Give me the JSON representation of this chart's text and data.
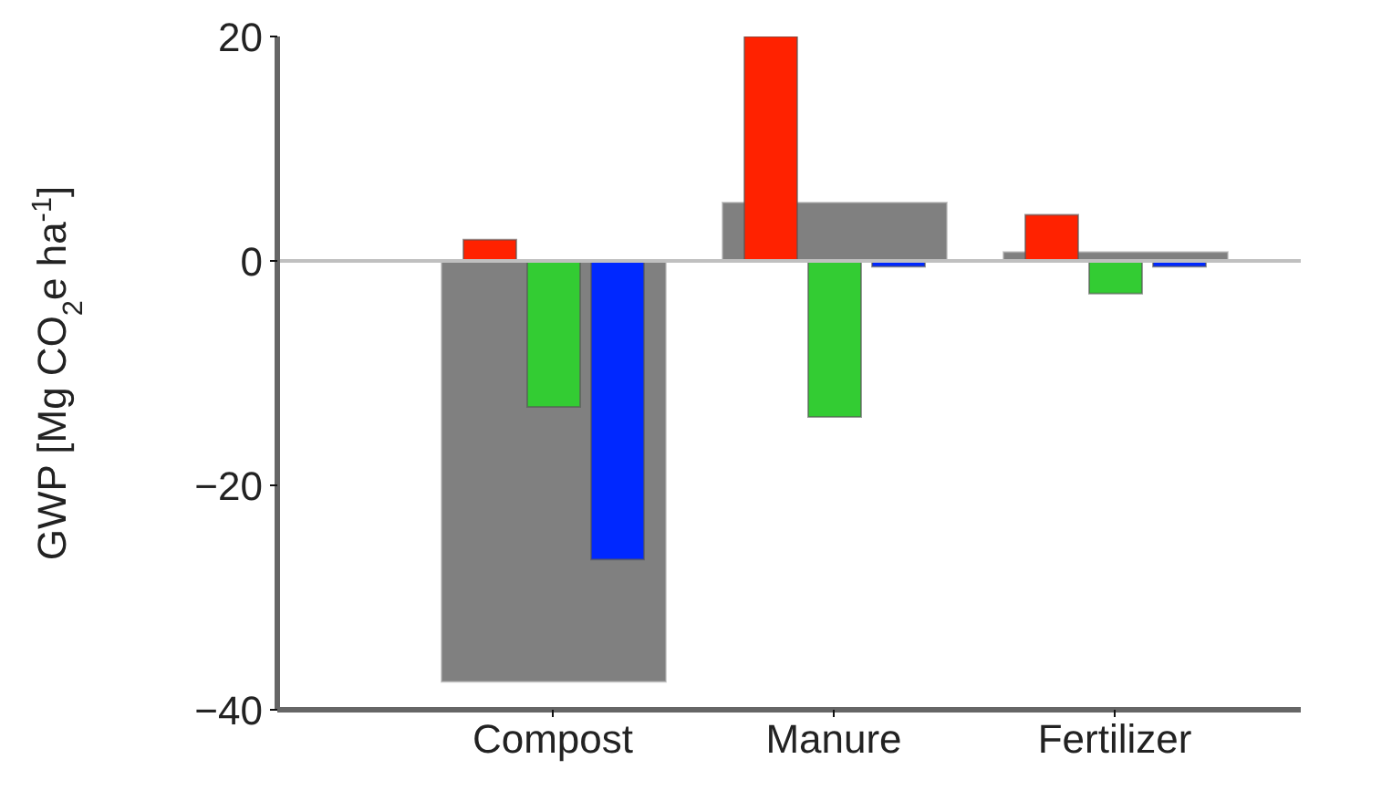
{
  "chart_data": {
    "type": "bar",
    "ylabel": "GWP [Mg CO$_{2}$e ha$^{-1}$]",
    "categories": [
      "Compost",
      "Manure",
      "Fertilizer"
    ],
    "series": [
      {
        "color": "#808080",
        "values": [
          -37.5,
          5.2,
          0.8
        ]
      },
      {
        "color": "#ff2200",
        "values": [
          1.9,
          20,
          4.1
        ]
      },
      {
        "color": "#33cc33",
        "values": [
          -13,
          -13.9,
          -2.9
        ]
      },
      {
        "color": "#0028ff",
        "values": [
          -26.6,
          -0.5,
          -0.5
        ]
      }
    ],
    "ylim": [
      -40,
      20
    ],
    "yticks": [
      {
        "value": -40,
        "label": "−40"
      },
      {
        "value": -20,
        "label": "−20"
      },
      0,
      20
    ],
    "ref_lines": [
      {
        "axis": "y",
        "value": 0,
        "color": "#c0c0c0"
      }
    ],
    "grid": false,
    "legend": false
  }
}
